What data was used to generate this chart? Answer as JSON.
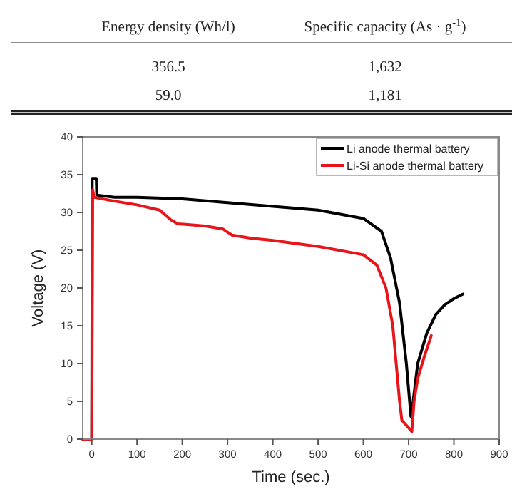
{
  "chart_data": [
    {
      "type": "other",
      "annotations": [
        "Energy density (Wh/l)",
        "Specific capacity (As · g$^{-1}$)",
        "356.5",
        "1,632",
        "59.0",
        "1,181"
      ]
    },
    {
      "type": "line",
      "xlabel": "Time (sec.)",
      "ylabel": "Voltage (V)",
      "xlim": [
        -20,
        900
      ],
      "ylim": [
        0,
        40
      ],
      "xticks": [
        0,
        100,
        200,
        300,
        400,
        500,
        600,
        700,
        800,
        900
      ],
      "yticks": [
        0,
        5,
        10,
        15,
        20,
        25,
        30,
        35,
        40
      ],
      "legend": "top right",
      "grid": false,
      "series": [
        {
          "name": "Li anode thermal battery",
          "color": "#000000",
          "x": [
            -20,
            0,
            1,
            10,
            11,
            50,
            100,
            200,
            300,
            400,
            500,
            600,
            640,
            660,
            680,
            695,
            705,
            710,
            720,
            740,
            760,
            780,
            800,
            820
          ],
          "values": [
            0,
            0,
            34.5,
            34.5,
            32.3,
            32,
            32,
            31.8,
            31.3,
            30.8,
            30.3,
            29.2,
            27.5,
            24,
            18,
            10,
            3,
            5,
            10,
            14,
            16.5,
            17.8,
            18.6,
            19.2
          ]
        },
        {
          "name": "Li-Si anode thermal battery",
          "color": "#e8141b",
          "x": [
            -20,
            0,
            2,
            5,
            50,
            100,
            150,
            175,
            190,
            250,
            290,
            310,
            350,
            400,
            500,
            600,
            630,
            650,
            665,
            680,
            685,
            700,
            707,
            712,
            720,
            735,
            750
          ],
          "values": [
            0,
            0,
            33,
            32,
            31.5,
            31,
            30.3,
            29,
            28.5,
            28.2,
            27.8,
            27,
            26.6,
            26.3,
            25.5,
            24.4,
            23,
            20,
            15,
            5,
            2.5,
            1.5,
            1,
            5,
            8,
            11,
            13.7
          ]
        }
      ]
    }
  ]
}
